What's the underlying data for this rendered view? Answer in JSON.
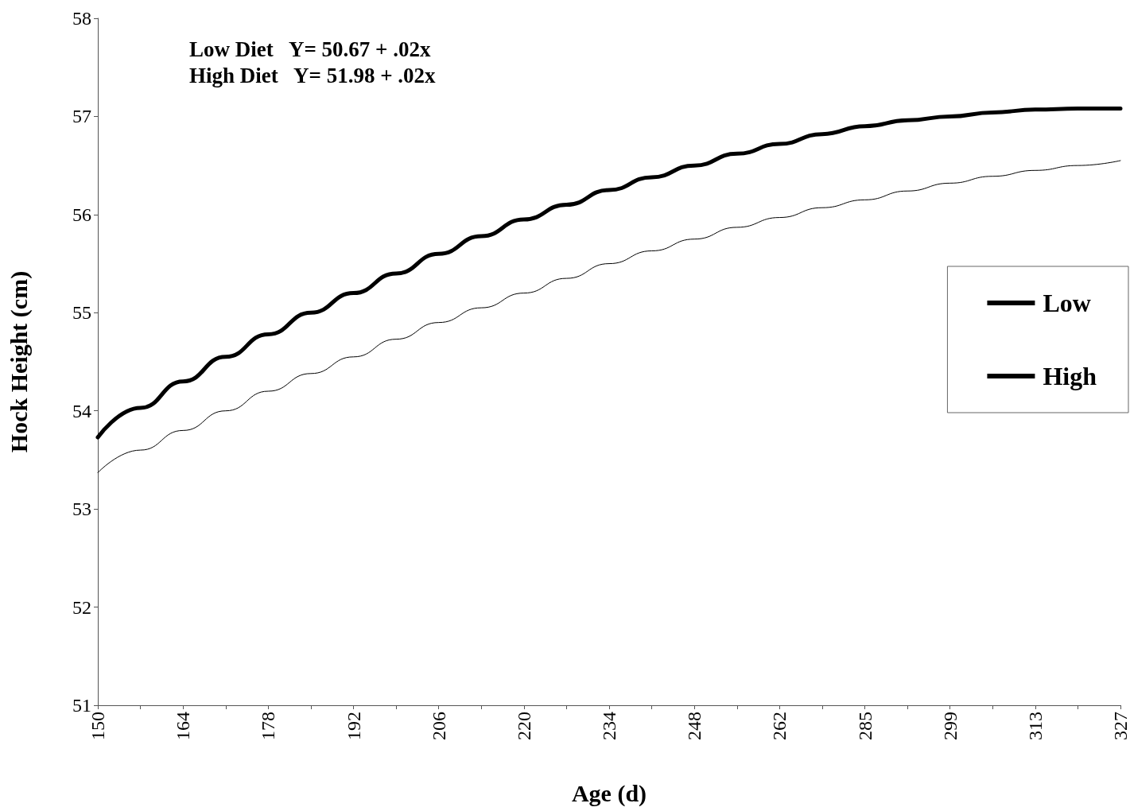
{
  "chart_data": {
    "type": "line",
    "xlabel": "Age (d)",
    "ylabel": "Hock Height (cm)",
    "categories": [
      "150",
      null,
      "164",
      null,
      "178",
      null,
      "192",
      null,
      "206",
      null,
      "220",
      null,
      "234",
      null,
      "248",
      null,
      "262",
      null,
      "285",
      null,
      "299",
      null,
      "313",
      null,
      "327"
    ],
    "series": [
      {
        "name": "Low",
        "color": "#000000",
        "values": [
          53.37,
          53.6,
          53.8,
          54.0,
          54.2,
          54.38,
          54.55,
          54.73,
          54.9,
          55.05,
          55.2,
          55.35,
          55.5,
          55.63,
          55.75,
          55.87,
          55.97,
          56.07,
          56.15,
          56.24,
          56.32,
          56.39,
          56.45,
          56.5,
          56.55
        ]
      },
      {
        "name": "High",
        "color": "#000000",
        "values": [
          53.73,
          54.03,
          54.3,
          54.55,
          54.78,
          55.0,
          55.2,
          55.4,
          55.6,
          55.78,
          55.95,
          56.1,
          56.25,
          56.38,
          56.5,
          56.62,
          56.72,
          56.82,
          56.9,
          56.96,
          57.0,
          57.04,
          57.07,
          57.08,
          57.08
        ]
      }
    ],
    "ylim": [
      51,
      58
    ],
    "yticks": [
      51,
      52,
      53,
      54,
      55,
      56,
      57,
      58
    ],
    "annotations": [
      "Low Diet   Y= 50.67 + .02x",
      "High Diet   Y= 51.98 + .02x"
    ],
    "legend": "right",
    "grid": false,
    "marker": "none",
    "line_style": "solid"
  }
}
